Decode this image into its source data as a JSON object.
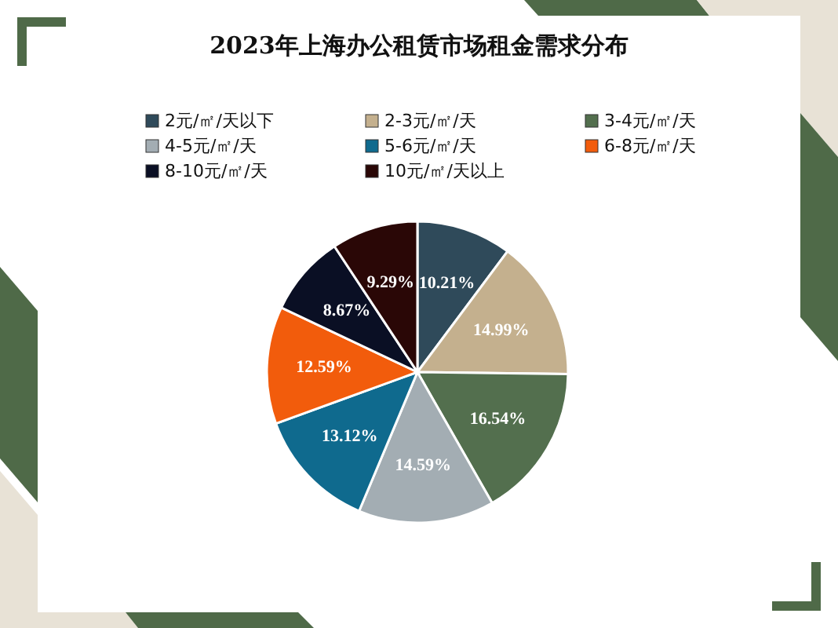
{
  "chart_data": {
    "type": "pie",
    "title": "2023年上海办公租赁市场租金需求分布",
    "categories": [
      "2元/㎡/天以下",
      "2-3元/㎡/天",
      "3-4元/㎡/天",
      "4-5元/㎡/天",
      "5-6元/㎡/天",
      "6-8元/㎡/天",
      "8-10元/㎡/天",
      "10元/㎡/天以上"
    ],
    "values": [
      10.21,
      14.99,
      16.54,
      14.59,
      13.12,
      12.59,
      8.67,
      9.29
    ],
    "value_labels": [
      "10.21%",
      "14.99%",
      "16.54%",
      "14.59%",
      "13.12%",
      "12.59%",
      "8.67%",
      "9.29%"
    ],
    "colors": [
      "#2f4a5a",
      "#c4b08e",
      "#536f4e",
      "#a3adb3",
      "#0f6a8e",
      "#f25c0c",
      "#0a0f24",
      "#2a0706"
    ],
    "legend": "top"
  }
}
